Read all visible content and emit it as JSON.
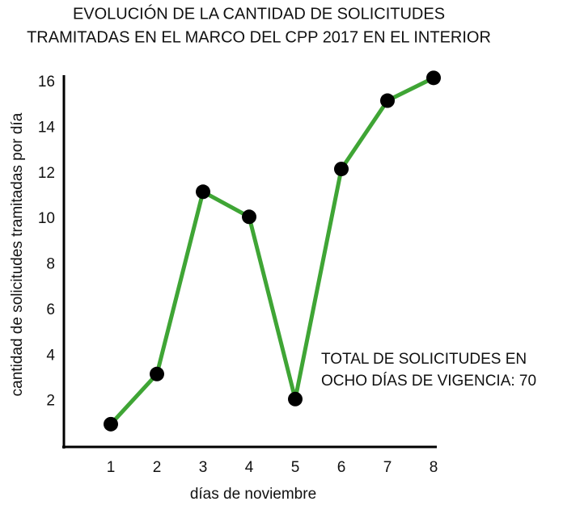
{
  "chart_data": {
    "type": "line",
    "title": [
      "EVOLUCIÓN DE LA CANTIDAD DE SOLICITUDES",
      "TRAMITADAS EN EL MARCO DEL CPP 2017 EN EL INTERIOR"
    ],
    "x_label": "días de noviembre",
    "y_label": "cantidad de solicitudes tramitadas por día",
    "annotation": [
      "TOTAL DE SOLICITUDES EN",
      "OCHO DÍAS DE VIGENCIA: 70"
    ],
    "x": [
      1,
      2,
      3,
      4,
      5,
      6,
      7,
      8
    ],
    "series": [
      {
        "name": "solicitudes",
        "color": "#3fa535",
        "marker_color": "#000000",
        "values": [
          1,
          3.2,
          11.2,
          10.1,
          2.1,
          12.2,
          15.2,
          16.2
        ]
      }
    ],
    "xlim": [
      0,
      8
    ],
    "xticks": [
      1,
      2,
      3,
      4,
      5,
      6,
      7,
      8
    ],
    "ylim": [
      0,
      16
    ],
    "yticks": [
      2,
      4,
      6,
      8,
      10,
      12,
      14,
      16
    ],
    "grid": false
  }
}
